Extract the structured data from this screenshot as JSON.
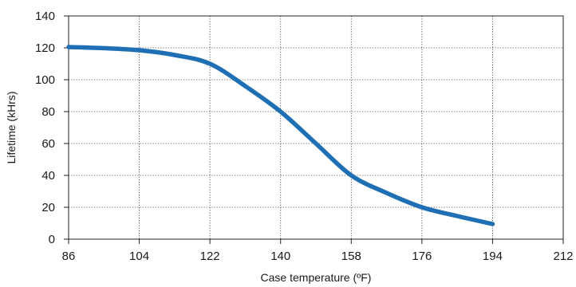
{
  "chart_data": {
    "type": "line",
    "title": "",
    "xlabel": "Case temperature (ºF)",
    "ylabel": "Lifetime (kHrs)",
    "xlim": [
      86,
      212
    ],
    "ylim": [
      0,
      140
    ],
    "xticks": [
      86,
      104,
      122,
      140,
      158,
      176,
      194,
      212
    ],
    "yticks": [
      0,
      20,
      40,
      60,
      80,
      100,
      120,
      140
    ],
    "grid": true,
    "legend": "none",
    "series": [
      {
        "color": "#1f6fb4",
        "x": [
          86,
          95,
          104,
          113,
          122,
          131,
          140,
          149,
          158,
          167,
          176,
          185,
          194
        ],
        "y": [
          120.5,
          119.8,
          118.5,
          115.5,
          110,
          96,
          80,
          60,
          40,
          29,
          20,
          14.5,
          9.5
        ]
      }
    ]
  }
}
